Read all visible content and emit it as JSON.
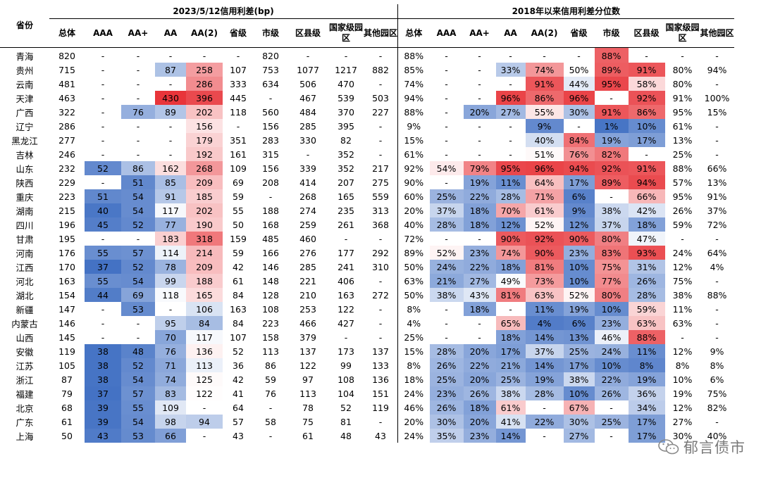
{
  "header": {
    "province_label": "省份",
    "group1_title": "2023/5/12信用利差(bp)",
    "group2_title": "2018年以来信用利差分位数",
    "columns": [
      "总体",
      "AAA",
      "AA+",
      "AA",
      "AA(2)",
      "省级",
      "市级",
      "区县级",
      "国家级园区",
      "其他园区"
    ]
  },
  "rows": [
    {
      "p": "青海",
      "s": [
        "820",
        "-",
        "-",
        "-",
        "-",
        "-",
        "820",
        "-",
        "-",
        "-"
      ],
      "q": [
        "88%",
        "-",
        "-",
        "-",
        "-",
        "-",
        "88%",
        "-",
        "-",
        "-"
      ]
    },
    {
      "p": "贵州",
      "s": [
        "715",
        "-",
        "-",
        "87",
        "258",
        "107",
        "753",
        "1077",
        "1217",
        "882"
      ],
      "q": [
        "85%",
        "-",
        "-",
        "33%",
        "74%",
        "50%",
        "89%",
        "91%",
        "80%",
        "94%"
      ]
    },
    {
      "p": "云南",
      "s": [
        "481",
        "-",
        "-",
        "-",
        "286",
        "333",
        "634",
        "506",
        "470",
        "-"
      ],
      "q": [
        "74%",
        "-",
        "-",
        "-",
        "91%",
        "44%",
        "95%",
        "58%",
        "80%",
        "-"
      ]
    },
    {
      "p": "天津",
      "s": [
        "463",
        "-",
        "-",
        "430",
        "396",
        "445",
        "-",
        "467",
        "539",
        "503"
      ],
      "q": [
        "94%",
        "-",
        "-",
        "96%",
        "86%",
        "96%",
        "-",
        "92%",
        "91%",
        "100%"
      ]
    },
    {
      "p": "广西",
      "s": [
        "322",
        "-",
        "76",
        "89",
        "202",
        "118",
        "560",
        "484",
        "370",
        "227"
      ],
      "q": [
        "88%",
        "-",
        "20%",
        "27%",
        "55%",
        "30%",
        "91%",
        "86%",
        "95%",
        "15%"
      ]
    },
    {
      "p": "辽宁",
      "s": [
        "286",
        "-",
        "-",
        "-",
        "156",
        "-",
        "156",
        "285",
        "395",
        "-"
      ],
      "q": [
        "9%",
        "-",
        "-",
        "-",
        "9%",
        "-",
        "1%",
        "10%",
        "61%",
        "-"
      ]
    },
    {
      "p": "黑龙江",
      "s": [
        "277",
        "-",
        "-",
        "-",
        "179",
        "351",
        "283",
        "330",
        "82",
        "-"
      ],
      "q": [
        "15%",
        "-",
        "-",
        "-",
        "40%",
        "84%",
        "19%",
        "17%",
        "13%",
        "-"
      ]
    },
    {
      "p": "吉林",
      "s": [
        "246",
        "-",
        "-",
        "-",
        "192",
        "161",
        "315",
        "-",
        "352",
        "-"
      ],
      "q": [
        "61%",
        "-",
        "-",
        "-",
        "51%",
        "76%",
        "82%",
        "-",
        "25%",
        "-"
      ]
    },
    {
      "p": "山东",
      "s": [
        "232",
        "52",
        "86",
        "162",
        "268",
        "109",
        "156",
        "339",
        "352",
        "217"
      ],
      "q": [
        "92%",
        "54%",
        "79%",
        "95%",
        "96%",
        "94%",
        "92%",
        "91%",
        "88%",
        "66%"
      ]
    },
    {
      "p": "陕西",
      "s": [
        "229",
        "-",
        "51",
        "85",
        "209",
        "69",
        "208",
        "414",
        "207",
        "275"
      ],
      "q": [
        "90%",
        "-",
        "19%",
        "11%",
        "64%",
        "17%",
        "89%",
        "94%",
        "57%",
        "13%"
      ]
    },
    {
      "p": "重庆",
      "s": [
        "223",
        "51",
        "54",
        "91",
        "185",
        "59",
        "-",
        "268",
        "165",
        "559"
      ],
      "q": [
        "60%",
        "25%",
        "22%",
        "28%",
        "71%",
        "6%",
        "-",
        "66%",
        "95%",
        "91%"
      ]
    },
    {
      "p": "湖南",
      "s": [
        "215",
        "40",
        "54",
        "117",
        "202",
        "55",
        "188",
        "274",
        "235",
        "313"
      ],
      "q": [
        "20%",
        "37%",
        "18%",
        "70%",
        "61%",
        "9%",
        "38%",
        "42%",
        "26%",
        "37%"
      ]
    },
    {
      "p": "四川",
      "s": [
        "196",
        "45",
        "52",
        "77",
        "190",
        "50",
        "168",
        "259",
        "261",
        "368"
      ],
      "q": [
        "40%",
        "28%",
        "18%",
        "12%",
        "52%",
        "12%",
        "37%",
        "18%",
        "59%",
        "72%"
      ]
    },
    {
      "p": "甘肃",
      "s": [
        "195",
        "-",
        "-",
        "183",
        "318",
        "159",
        "485",
        "460",
        "-",
        "-"
      ],
      "q": [
        "72%",
        "-",
        "-",
        "90%",
        "92%",
        "90%",
        "80%",
        "47%",
        "-",
        "-"
      ]
    },
    {
      "p": "河南",
      "s": [
        "176",
        "55",
        "57",
        "114",
        "214",
        "59",
        "166",
        "276",
        "177",
        "292"
      ],
      "q": [
        "89%",
        "52%",
        "23%",
        "74%",
        "90%",
        "23%",
        "83%",
        "93%",
        "24%",
        "64%"
      ]
    },
    {
      "p": "江西",
      "s": [
        "170",
        "37",
        "52",
        "78",
        "209",
        "42",
        "146",
        "285",
        "241",
        "310"
      ],
      "q": [
        "50%",
        "24%",
        "22%",
        "18%",
        "81%",
        "10%",
        "75%",
        "31%",
        "12%",
        "4%"
      ]
    },
    {
      "p": "河北",
      "s": [
        "163",
        "55",
        "54",
        "99",
        "188",
        "61",
        "148",
        "221",
        "406",
        "-"
      ],
      "q": [
        "63%",
        "21%",
        "27%",
        "49%",
        "73%",
        "10%",
        "77%",
        "26%",
        "75%",
        "-"
      ]
    },
    {
      "p": "湖北",
      "s": [
        "154",
        "44",
        "69",
        "118",
        "165",
        "84",
        "128",
        "210",
        "163",
        "272"
      ],
      "q": [
        "50%",
        "38%",
        "43%",
        "81%",
        "63%",
        "52%",
        "80%",
        "28%",
        "38%",
        "88%"
      ]
    },
    {
      "p": "新疆",
      "s": [
        "147",
        "-",
        "53",
        "-",
        "106",
        "163",
        "108",
        "253",
        "122",
        "-"
      ],
      "q": [
        "8%",
        "-",
        "18%",
        "-",
        "11%",
        "19%",
        "10%",
        "59%",
        "11%",
        "-"
      ]
    },
    {
      "p": "内蒙古",
      "s": [
        "146",
        "-",
        "-",
        "95",
        "84",
        "84",
        "223",
        "466",
        "427",
        "-"
      ],
      "q": [
        "4%",
        "-",
        "-",
        "65%",
        "4%",
        "6%",
        "23%",
        "63%",
        "63%",
        "-"
      ]
    },
    {
      "p": "山西",
      "s": [
        "145",
        "-",
        "-",
        "70",
        "117",
        "107",
        "158",
        "379",
        "-",
        "-"
      ],
      "q": [
        "25%",
        "-",
        "-",
        "18%",
        "14%",
        "13%",
        "46%",
        "88%",
        "-",
        "-"
      ]
    },
    {
      "p": "安徽",
      "s": [
        "119",
        "38",
        "48",
        "76",
        "136",
        "52",
        "113",
        "137",
        "173",
        "137"
      ],
      "q": [
        "15%",
        "28%",
        "20%",
        "17%",
        "37%",
        "25%",
        "24%",
        "11%",
        "12%",
        "9%"
      ]
    },
    {
      "p": "江苏",
      "s": [
        "105",
        "38",
        "52",
        "71",
        "113",
        "36",
        "86",
        "122",
        "99",
        "133"
      ],
      "q": [
        "8%",
        "26%",
        "22%",
        "21%",
        "14%",
        "17%",
        "10%",
        "8%",
        "8%",
        "8%"
      ]
    },
    {
      "p": "浙江",
      "s": [
        "87",
        "38",
        "54",
        "74",
        "125",
        "42",
        "59",
        "97",
        "108",
        "136"
      ],
      "q": [
        "18%",
        "25%",
        "20%",
        "25%",
        "19%",
        "38%",
        "22%",
        "19%",
        "10%",
        "6%"
      ]
    },
    {
      "p": "福建",
      "s": [
        "79",
        "37",
        "57",
        "83",
        "122",
        "41",
        "76",
        "113",
        "104",
        "151"
      ],
      "q": [
        "24%",
        "23%",
        "26%",
        "38%",
        "28%",
        "10%",
        "26%",
        "36%",
        "19%",
        "75%"
      ]
    },
    {
      "p": "北京",
      "s": [
        "68",
        "39",
        "55",
        "109",
        "-",
        "64",
        "-",
        "78",
        "52",
        "119"
      ],
      "q": [
        "46%",
        "26%",
        "18%",
        "61%",
        "-",
        "67%",
        "-",
        "34%",
        "12%",
        "82%"
      ]
    },
    {
      "p": "广东",
      "s": [
        "61",
        "39",
        "54",
        "98",
        "94",
        "57",
        "58",
        "75",
        "81",
        "-"
      ],
      "q": [
        "20%",
        "30%",
        "20%",
        "41%",
        "22%",
        "30%",
        "25%",
        "17%",
        "27%",
        "-"
      ]
    },
    {
      "p": "上海",
      "s": [
        "50",
        "43",
        "53",
        "66",
        "-",
        "43",
        "-",
        "61",
        "48",
        "43"
      ],
      "q": [
        "24%",
        "35%",
        "23%",
        "14%",
        "-",
        "27%",
        "-",
        "17%",
        "30%",
        "40%"
      ]
    }
  ],
  "heat": {
    "spread_cols": [
      1,
      2,
      3,
      4
    ],
    "spread_scale": {
      "low": 37,
      "mid": 120,
      "high": 430
    },
    "quantile_cols": [
      1,
      2,
      3,
      4,
      5,
      6,
      7
    ],
    "quantile_scale": {
      "low": 0,
      "mid": 50,
      "high": 100
    },
    "color_low": "#4472c4",
    "color_mid": "#ffffff",
    "color_high": "#e8353a"
  },
  "watermark": {
    "text": "郁言债市"
  }
}
